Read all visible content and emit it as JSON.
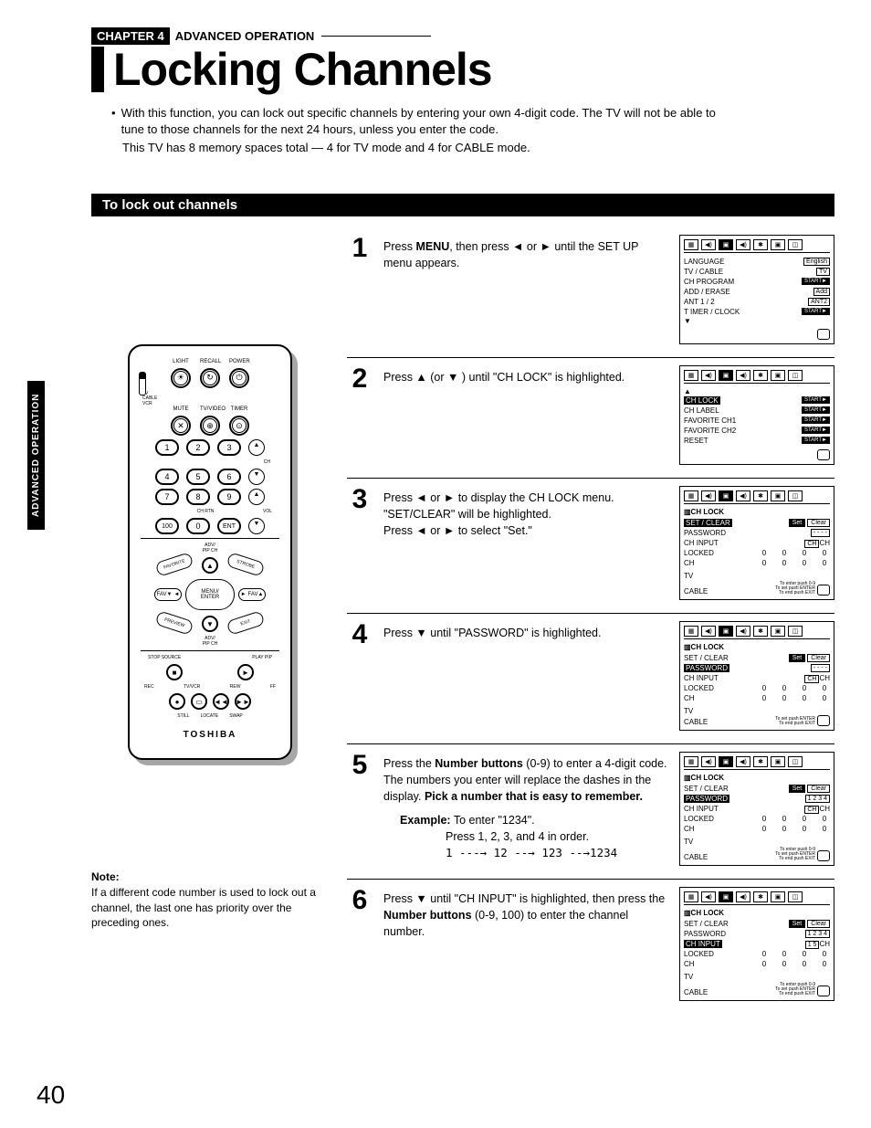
{
  "sidetab": "ADVANCED OPERATION",
  "chapter_tag": "CHAPTER 4",
  "chapter_label": "ADVANCED OPERATION",
  "title": "Locking Channels",
  "intro_bullet": "With this function, you can lock out specific channels by entering your own 4-digit code. The TV will not be able to tune to those channels for the next 24 hours, unless you enter the code.",
  "intro_line2": "This TV has 8 memory spaces total — 4 for TV mode and 4 for CABLE mode.",
  "section_title": "To lock out channels",
  "remote": {
    "row1_labels": [
      "LIGHT",
      "RECALL",
      "POWER"
    ],
    "side_labels": [
      "TV",
      "CABLE",
      "VCR"
    ],
    "row2_labels": [
      "MUTE",
      "TV/VIDEO",
      "TIMER"
    ],
    "ent": "ENT",
    "hundred": "100",
    "ch_rtn": "CH RTN",
    "ch": "CH",
    "vol": "VOL",
    "adv_pip": "ADV/\nPIP CH",
    "favorite": "FAVORITE",
    "strobe": "STROBE",
    "fav_down": "FAV▼",
    "fav_up": "FAV▲",
    "menu_enter": "MENU/\nENTER",
    "preview": "PREVIEW",
    "exit": "EXIT",
    "stop_source": "STOP SOURCE",
    "play_pip": "PLAY PIP",
    "rec": "REC",
    "tvvcr": "TV/VCR",
    "rew": "REW",
    "ff": "FF",
    "still": "STILL",
    "locate": "LOCATE",
    "swap": "SWAP",
    "brand": "TOSHIBA"
  },
  "note_title": "Note:",
  "note_text": "If a different code number is used to lock out a channel, the last one has priority over the preceding ones.",
  "page_number": "40",
  "steps": [
    {
      "num": "1",
      "text_pre": "Press ",
      "text_bold1": "MENU",
      "text_mid": ", then press  ◄  or  ►  until the SET UP menu appears.",
      "screen": {
        "type": "setup",
        "rows": [
          {
            "lbl": "LANGUAGE",
            "val": "English"
          },
          {
            "lbl": "TV / CABLE",
            "val": "TV"
          },
          {
            "lbl": "CH  PROGRAM",
            "val": "START►"
          },
          {
            "lbl": "ADD / ERASE",
            "val": "Add"
          },
          {
            "lbl": "ANT 1 / 2",
            "val": "ANT2"
          },
          {
            "lbl": "T IMER / CLOCK",
            "val": "START►"
          }
        ],
        "has_down_arrow": true
      }
    },
    {
      "num": "2",
      "text_plain": "Press  ▲  (or  ▼ ) until \"CH LOCK\" is highlighted.",
      "screen": {
        "type": "setup2",
        "rows": [
          {
            "lbl": "CH  LOCK",
            "val": "START►",
            "hl": true
          },
          {
            "lbl": "CH  LABEL",
            "val": "START►"
          },
          {
            "lbl": "FAVORITE  CH1",
            "val": "START►"
          },
          {
            "lbl": "FAVORITE  CH2",
            "val": "START►"
          },
          {
            "lbl": "RESET",
            "val": "START►"
          }
        ],
        "has_up_arrow": true
      }
    },
    {
      "num": "3",
      "text_plain": "Press  ◄  or  ►  to display the CH LOCK menu.\n\"SET/CLEAR\" will be highlighted.\nPress  ◄  or  ►  to select \"Set.\"",
      "screen": {
        "type": "chlock",
        "highlight": "SET / CLEAR",
        "password": "- - - -",
        "chinput": "CH",
        "locked": [
          "0",
          "0",
          "0",
          "0"
        ],
        "ch": [
          "0",
          "0",
          "0",
          "0"
        ],
        "foot": [
          "To enter push 0-9",
          "To set push ENTER",
          "To end push EXIT"
        ]
      }
    },
    {
      "num": "4",
      "text_plain": "Press  ▼  until \"PASSWORD\" is highlighted.",
      "screen": {
        "type": "chlock",
        "highlight": "PASSWORD",
        "password": "- - - -",
        "chinput": "CH",
        "locked": [
          "0",
          "0",
          "0",
          "0"
        ],
        "ch": [
          "0",
          "0",
          "0",
          "0"
        ],
        "foot": [
          "To set push ENTER",
          "To end push EXIT"
        ]
      }
    },
    {
      "num": "5",
      "text_html": "Press the <b>Number buttons</b> (0-9) to enter a 4-digit code. The numbers you enter will replace the dashes in the display. <b>Pick a number that is easy to remember.</b>",
      "example_label": "Example:",
      "example_text": " To enter \"1234\".",
      "example_line2": "Press 1, 2, 3, and 4 in order.",
      "example_line3": "1 ---→ 12 --→ 123 --→1234",
      "screen": {
        "type": "chlock",
        "highlight": "PASSWORD",
        "password": "1 2 3 4",
        "chinput": "CH",
        "locked": [
          "0",
          "0",
          "0",
          "0"
        ],
        "ch": [
          "0",
          "0",
          "0",
          "0"
        ],
        "foot": [
          "To enter push 0-9",
          "To set push ENTER",
          "To end push EXIT"
        ]
      }
    },
    {
      "num": "6",
      "text_html": "Press  ▼  until \"CH INPUT\" is highlighted, then press the <b>Number buttons</b> (0-9, 100) to enter the channel number.",
      "screen": {
        "type": "chlock",
        "highlight": "CH  INPUT",
        "password": "1 2 3 4",
        "chinput": "1 5",
        "chinput_suffix": "CH",
        "locked": [
          "0",
          "0",
          "0",
          "0"
        ],
        "ch": [
          "0",
          "0",
          "0",
          "0"
        ],
        "foot": [
          "To enter push 0-9",
          "To set push ENTER",
          "To end push EXIT"
        ]
      },
      "no_border": true
    }
  ],
  "chlock_labels": {
    "title": "CH LOCK",
    "setclear": "SET / CLEAR",
    "password": "PASSWORD",
    "chinput": "CH  INPUT",
    "locked": "LOCKED",
    "ch": "CH",
    "tv": "TV",
    "cable": "CABLE",
    "set": "Set",
    "clear": "Clear"
  }
}
